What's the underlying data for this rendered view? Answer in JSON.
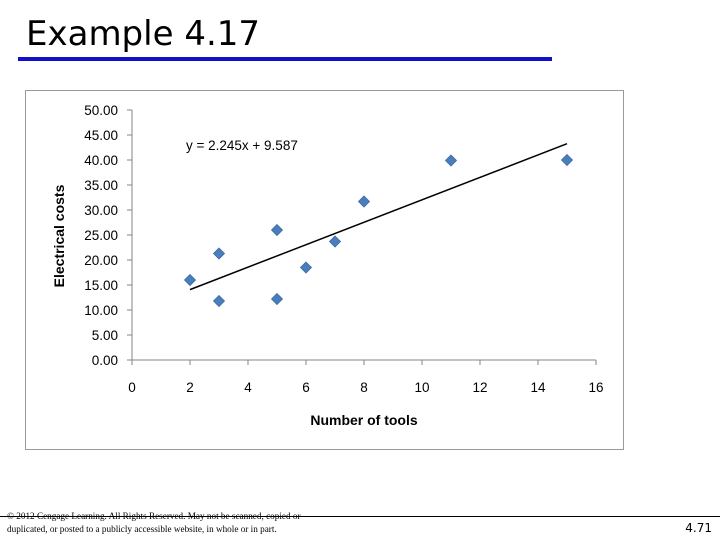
{
  "slide": {
    "title": "Example 4.17",
    "copyright": "© 2012 Cengage Learning. All Rights Reserved. May not be scanned, copied or duplicated, or posted to a publicly accessible website, in whole or in part.",
    "page_number": "4.71",
    "title_rule_color": "#1010c8"
  },
  "chart_data": {
    "type": "scatter",
    "title": "",
    "xlabel": "Number of tools",
    "ylabel": "Electrical costs",
    "xlim": [
      0,
      16
    ],
    "ylim": [
      0,
      50
    ],
    "x_ticks": [
      "0",
      "2",
      "4",
      "6",
      "8",
      "10",
      "12",
      "14",
      "16"
    ],
    "y_ticks": [
      "0.00",
      "5.00",
      "10.00",
      "15.00",
      "20.00",
      "25.00",
      "30.00",
      "35.00",
      "40.00",
      "45.00",
      "50.00"
    ],
    "grid": false,
    "marker": "diamond",
    "marker_color": "#4a7ebb",
    "trendline_color": "#000000",
    "points": [
      {
        "x": 2,
        "y": 16.0
      },
      {
        "x": 3,
        "y": 21.3
      },
      {
        "x": 3,
        "y": 11.8
      },
      {
        "x": 5,
        "y": 26.0
      },
      {
        "x": 5,
        "y": 12.2
      },
      {
        "x": 6,
        "y": 18.5
      },
      {
        "x": 7,
        "y": 23.7
      },
      {
        "x": 8,
        "y": 31.7
      },
      {
        "x": 11,
        "y": 39.9
      },
      {
        "x": 15,
        "y": 40.0
      }
    ],
    "trendline": {
      "slope": 2.245,
      "intercept": 9.587,
      "x_range": [
        2,
        15
      ],
      "equation_label": "y = 2.245x + 9.587"
    }
  }
}
